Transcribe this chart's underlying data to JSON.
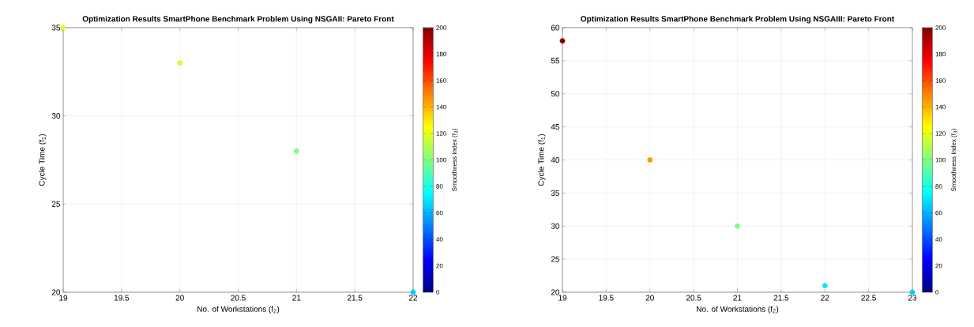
{
  "chart_data": [
    {
      "type": "scatter",
      "title": "Optimization Results SmartPhone Benchmark Problem Using NSGAII: Pareto Front",
      "xlabel": "No. of Workstations (f$_{2}$)",
      "ylabel": "Cycle Time (f$_{1}$)",
      "clabel": "Smoothness Index (f$_{3}$)",
      "x": [
        19,
        20,
        21,
        22
      ],
      "values": [
        35,
        33,
        28,
        20
      ],
      "cvalues": [
        120,
        115,
        100,
        65
      ],
      "xlim": [
        19,
        22
      ],
      "xticks": [
        19,
        19.5,
        20,
        20.5,
        21,
        21.5,
        22
      ],
      "ylim": [
        20,
        35
      ],
      "yticks": [
        20,
        25,
        30,
        35
      ],
      "clim": [
        0,
        200
      ],
      "cticks": [
        0,
        20,
        40,
        60,
        80,
        100,
        120,
        140,
        160,
        180,
        200
      ],
      "grid": true,
      "marker": "circle"
    },
    {
      "type": "scatter",
      "title": "Optimization Results SmartPhone Benchmark Problem Using NSGAIII: Pareto Front",
      "xlabel": "No. of Workstations (f$_{2}$)",
      "ylabel": "Cycle Time (f$_{1}$)",
      "clabel": "Smoothness Index (f$_{3}$)",
      "x": [
        19,
        20,
        21,
        22,
        23
      ],
      "values": [
        58,
        40,
        30,
        21,
        20
      ],
      "cvalues": [
        200,
        145,
        100,
        70,
        65
      ],
      "xlim": [
        19,
        23
      ],
      "xticks": [
        19,
        19.5,
        20,
        20.5,
        21,
        21.5,
        22,
        22.5,
        23
      ],
      "ylim": [
        20,
        60
      ],
      "yticks": [
        20,
        25,
        30,
        35,
        40,
        45,
        50,
        55,
        60
      ],
      "clim": [
        0,
        200
      ],
      "cticks": [
        0,
        20,
        40,
        60,
        80,
        100,
        120,
        140,
        160,
        180,
        200
      ],
      "grid": true,
      "marker": "circle"
    }
  ]
}
